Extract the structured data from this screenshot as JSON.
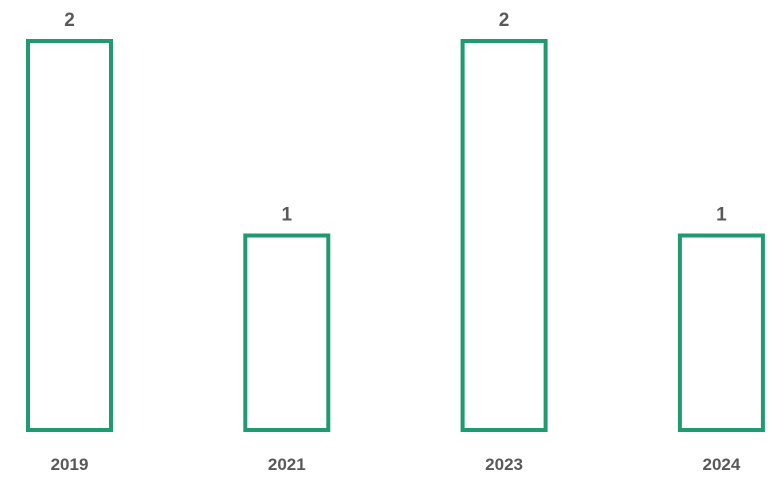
{
  "chart_data": {
    "type": "bar",
    "categories": [
      "2019",
      "2021",
      "2023",
      "2024"
    ],
    "values": [
      2,
      1,
      2,
      1
    ],
    "data_labels": [
      "2",
      "1",
      "2",
      "1"
    ],
    "title": "",
    "xlabel": "",
    "ylabel": "",
    "ylim": [
      0,
      2
    ],
    "grid": false,
    "legend": "none",
    "colors": {
      "bar_outline": "#1f9a72",
      "bar_fill": "#ffffff",
      "label_text": "#595959"
    }
  }
}
